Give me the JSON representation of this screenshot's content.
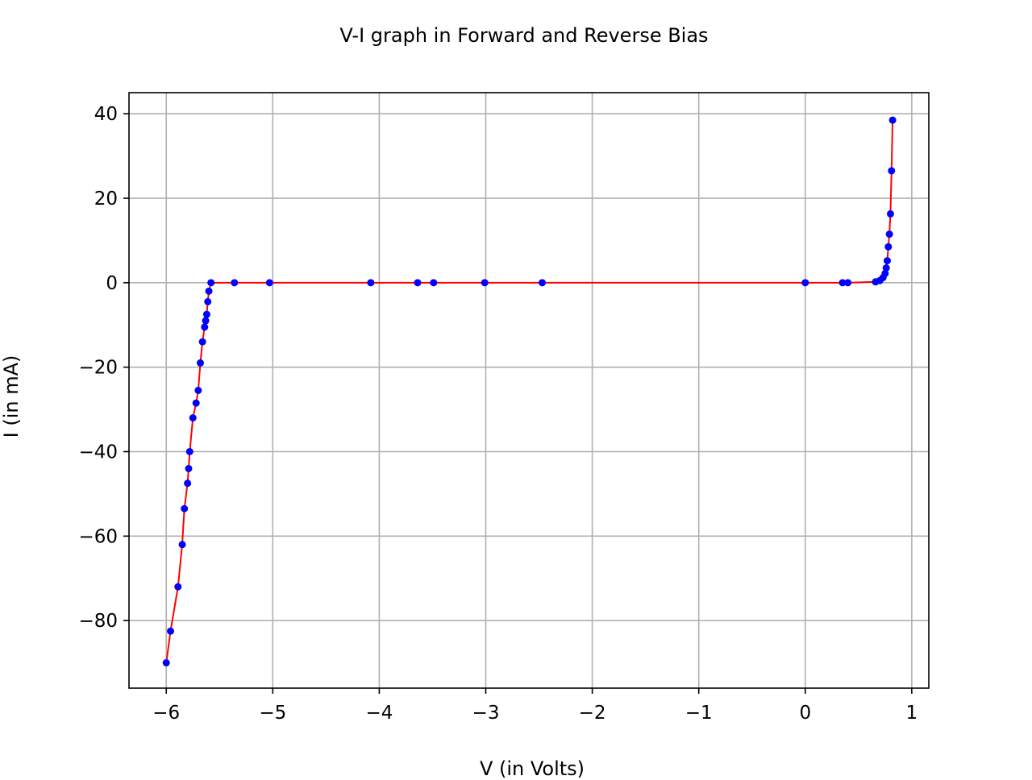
{
  "chart_data": {
    "type": "line",
    "title": "V-I graph in Forward and Reverse Bias",
    "xlabel": "V (in Volts)",
    "ylabel": "I (in mA)",
    "xlim": [
      -6.35,
      1.16
    ],
    "ylim": [
      -96,
      45
    ],
    "x_ticks": [
      -6,
      -5,
      -4,
      -3,
      -2,
      -1,
      0,
      1
    ],
    "x_tick_labels": [
      "−6",
      "−5",
      "−4",
      "−3",
      "−2",
      "−1",
      "0",
      "1"
    ],
    "y_ticks": [
      40,
      20,
      0,
      -20,
      -40,
      -60,
      -80
    ],
    "y_tick_labels": [
      "40",
      "20",
      "0",
      "−20",
      "−40",
      "−60",
      "−80"
    ],
    "grid": true,
    "line_color": "#ff0000",
    "marker_color": "#0000ff",
    "series": [
      {
        "x": [
          -6.0,
          -5.96,
          -5.89,
          -5.85,
          -5.83,
          -5.8,
          -5.79,
          -5.78,
          -5.75,
          -5.72,
          -5.7,
          -5.68,
          -5.66,
          -5.64,
          -5.63,
          -5.62,
          -5.61,
          -5.6,
          -5.58,
          -5.36,
          -5.03,
          -4.08,
          -3.64,
          -3.49,
          -3.01,
          -2.47,
          0.0,
          0.35,
          0.4,
          0.66,
          0.7,
          0.73,
          0.75,
          0.76,
          0.77,
          0.78,
          0.79,
          0.8,
          0.81,
          0.82
        ],
        "y": [
          -90,
          -82.5,
          -72,
          -62,
          -53.5,
          -47.5,
          -44,
          -40,
          -32,
          -28.5,
          -25.5,
          -19,
          -14,
          -10.5,
          -9,
          -7.5,
          -4.5,
          -2,
          0,
          0,
          0,
          0,
          0,
          0,
          0,
          0,
          0,
          0,
          0,
          0.2,
          0.5,
          1.2,
          2.2,
          3.5,
          5.2,
          8.5,
          11.5,
          16.3,
          26.5,
          38.5
        ]
      }
    ]
  }
}
